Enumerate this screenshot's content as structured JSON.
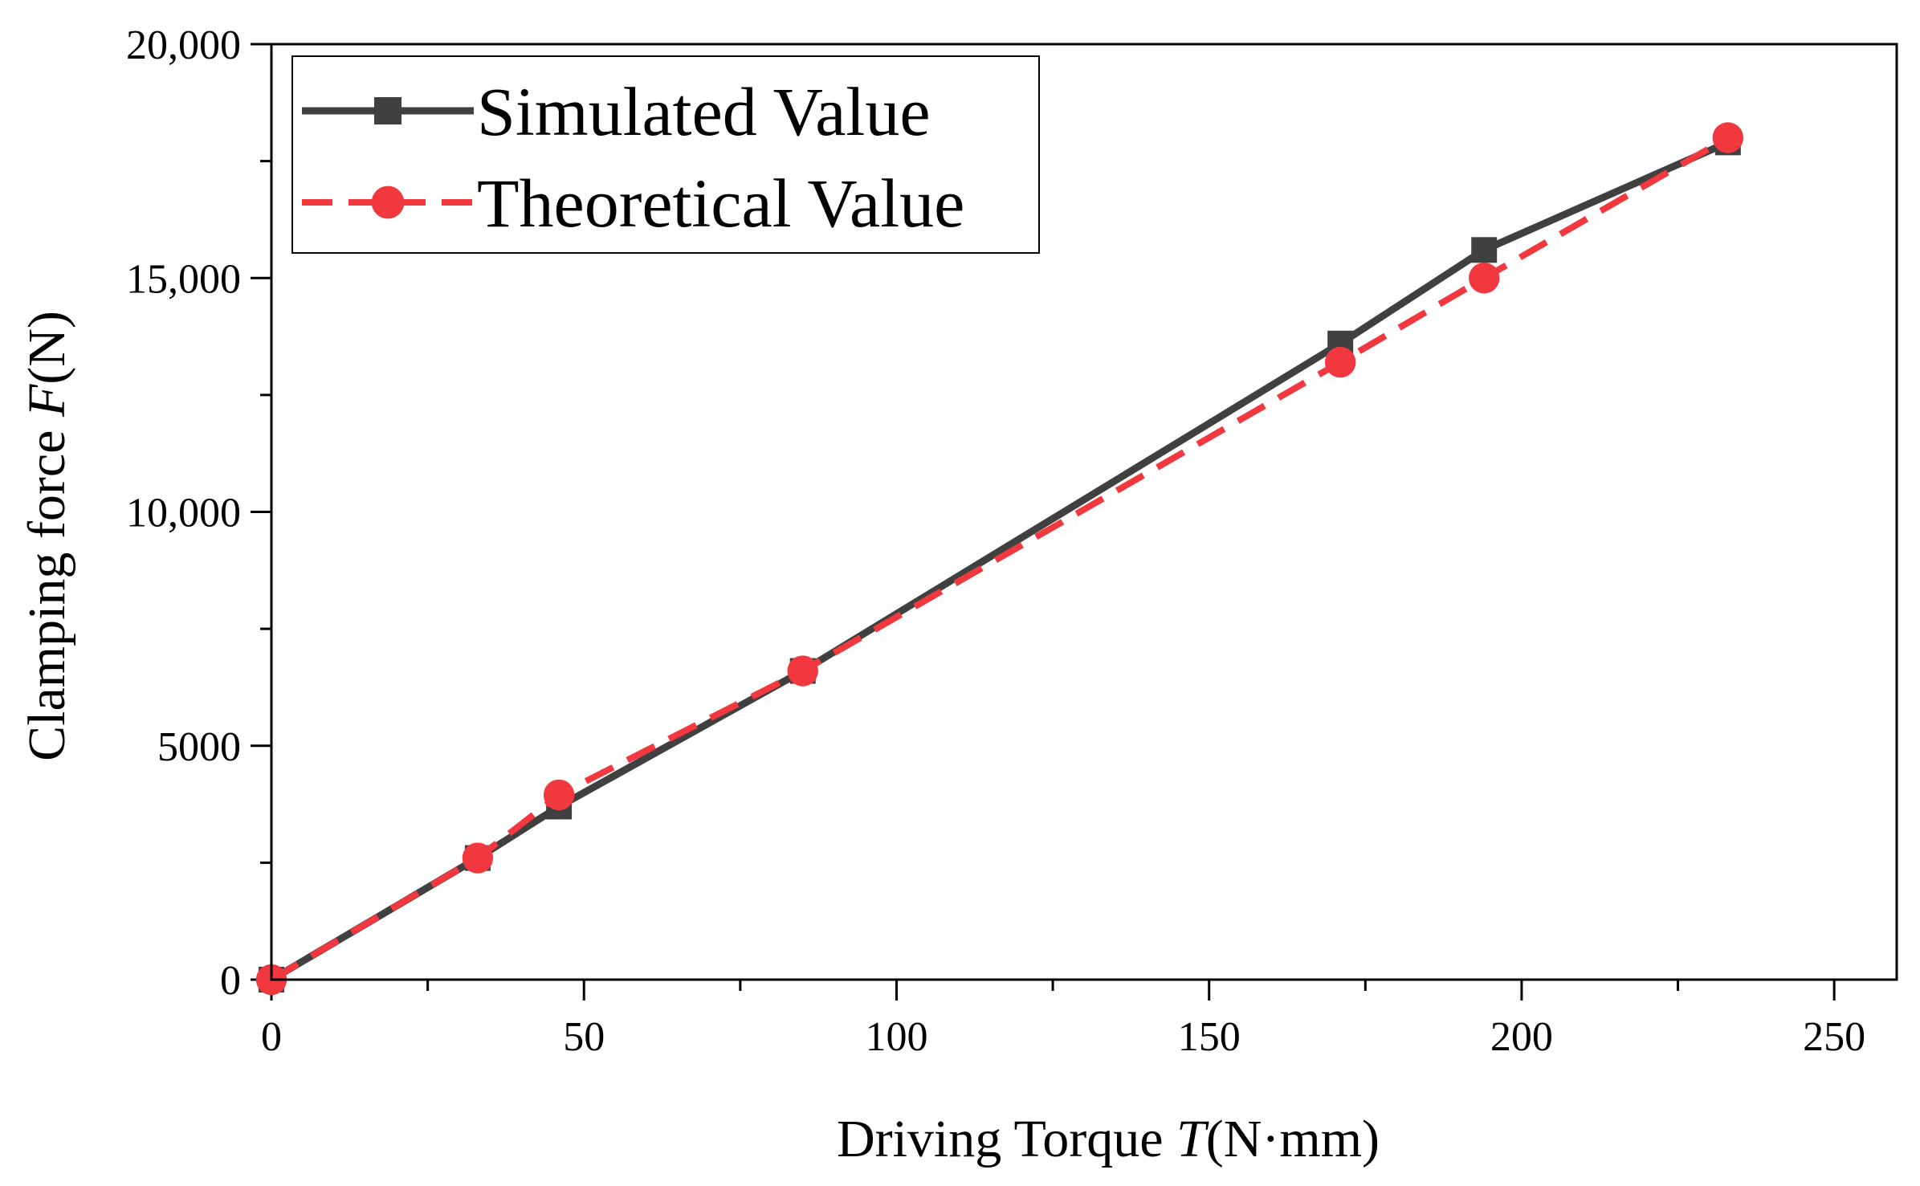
{
  "chart_data": {
    "type": "line",
    "title": "",
    "xlabel_prefix": "Driving Torque ",
    "xlabel_var": "T",
    "xlabel_unit": "(N·mm)",
    "ylabel_prefix": "Clamping force ",
    "ylabel_var": "F",
    "ylabel_unit": "(N)",
    "xlim": [
      0,
      260
    ],
    "ylim": [
      0,
      20000
    ],
    "x_major_ticks": [
      0,
      50,
      100,
      150,
      200,
      250
    ],
    "x_tick_labels": [
      "0",
      "50",
      "100",
      "150",
      "200",
      "250"
    ],
    "y_major_ticks": [
      0,
      5000,
      10000,
      15000,
      20000
    ],
    "y_tick_labels": [
      "0",
      "5000",
      "10,000",
      "15,000",
      "20,000"
    ],
    "grid": false,
    "legend_position": "top-left",
    "series": [
      {
        "name": "Simulated Value",
        "color": "#404040",
        "marker": "square",
        "line_style": "solid",
        "x": [
          0,
          33,
          46,
          85,
          171,
          194,
          233
        ],
        "y": [
          0,
          2600,
          3700,
          6600,
          13600,
          15600,
          17900
        ]
      },
      {
        "name": "Theoretical Value",
        "color": "#f2383f",
        "marker": "circle",
        "line_style": "dashed",
        "x": [
          0,
          33,
          46,
          85,
          171,
          194,
          233
        ],
        "y": [
          0,
          2600,
          3950,
          6600,
          13200,
          15000,
          18000
        ]
      }
    ]
  }
}
